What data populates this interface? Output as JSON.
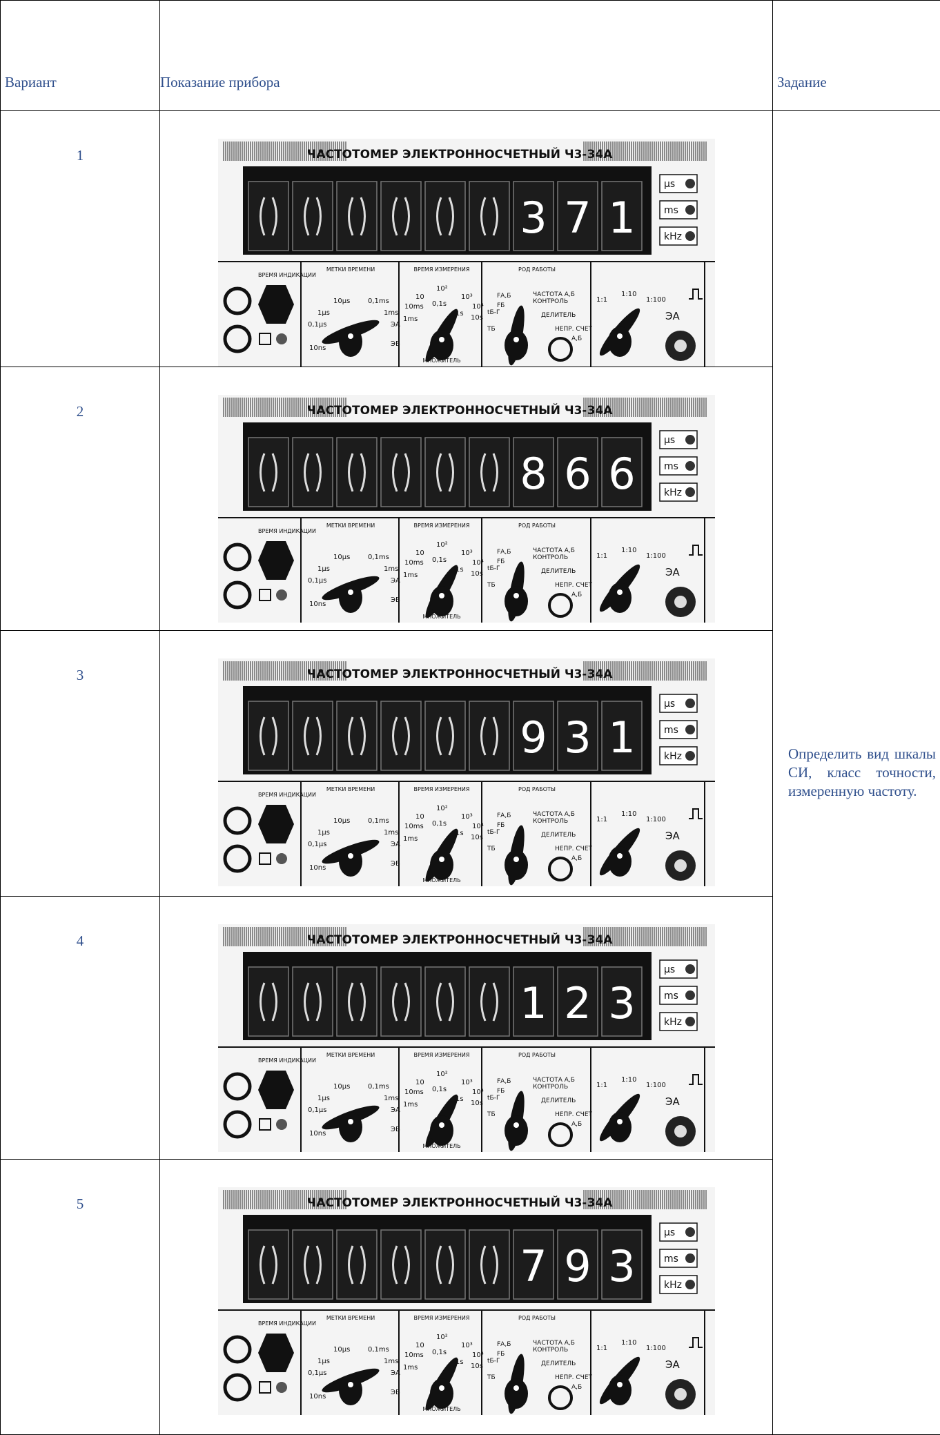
{
  "header": {
    "variant": "Вариант",
    "reading": "Показание прибора",
    "task": "Задание"
  },
  "task": "Определить вид шкалы СИ, класс точности, измеренную частоту.",
  "device": {
    "title": "ЧАСТОТОМЕР ЭЛЕКТРОННОСЧЕТНЫЙ Ч3-34А",
    "units": [
      "µs",
      "ms",
      "kHz"
    ],
    "display_time": "ВРЕМЯ ИНДИКАЦИИ",
    "time_marks": {
      "label": "МЕТКИ ВРЕМЕНИ",
      "options": [
        "10µs",
        "0,1ms",
        "1µs",
        "1ms",
        "0,1µs",
        "ЭА",
        "10ns",
        "ЭБ"
      ]
    },
    "measure_time": {
      "label": "ВРЕМЯ ИЗМЕРЕНИЯ",
      "options": [
        "10",
        "10²",
        "10³",
        "10ms",
        "0,1s",
        "1s",
        "10⁴",
        "1ms",
        "10s"
      ],
      "multiplier": "МНОЖИТЕЛЬ"
    },
    "mode": {
      "label": "РОД РАБОТЫ",
      "options": [
        "FА,Б",
        "FБ",
        "ЧАСТОТА А,Б",
        "КОНТРОЛЬ",
        "tБ-Г",
        "ДЕЛИТЕЛЬ",
        "TБ",
        "НЕПР. СЧЕТ",
        "А,Б"
      ]
    },
    "dividers": [
      "1:1",
      "1:10",
      "1:100"
    ],
    "input": "ЭА"
  },
  "rows": [
    {
      "variant": "1",
      "digits": [
        "3",
        "7",
        "1"
      ]
    },
    {
      "variant": "2",
      "digits": [
        "8",
        "6",
        "6"
      ]
    },
    {
      "variant": "3",
      "digits": [
        "9",
        "3",
        "1"
      ]
    },
    {
      "variant": "4",
      "digits": [
        "1",
        "2",
        "3"
      ]
    },
    {
      "variant": "5",
      "digits": [
        "7",
        "9",
        "3"
      ]
    }
  ]
}
